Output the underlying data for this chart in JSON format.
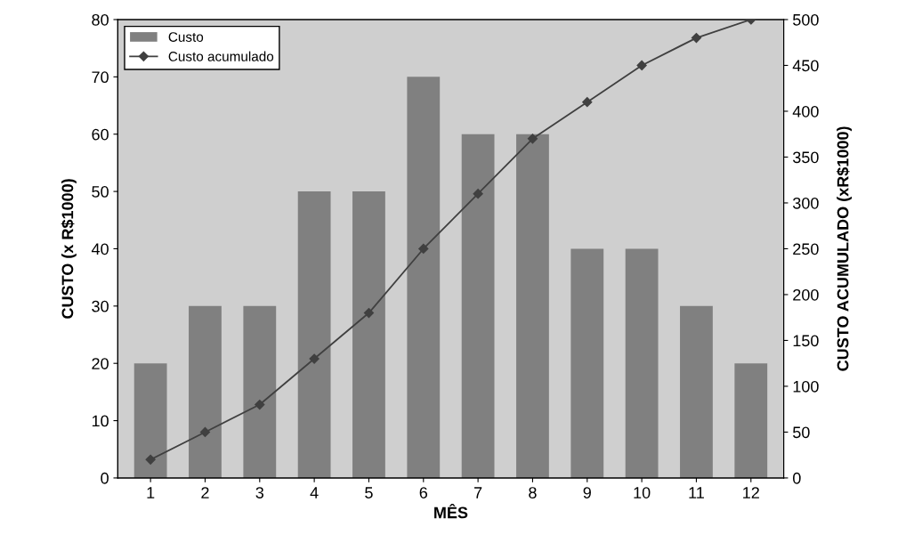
{
  "chart_data": {
    "type": "bar",
    "xlabel": "MÊS",
    "ylabel": "CUSTO (x R$1000)",
    "y2label": "CUSTO ACUMULADO (xR$1000)",
    "categories": [
      "1",
      "2",
      "3",
      "4",
      "5",
      "6",
      "7",
      "8",
      "9",
      "10",
      "11",
      "12"
    ],
    "series": [
      {
        "name": "Custo",
        "color": "#808080",
        "values": [
          20,
          30,
          30,
          50,
          50,
          70,
          60,
          60,
          40,
          40,
          30,
          20
        ]
      },
      {
        "name": "Custo acumulado",
        "type": "line",
        "axis": "y2",
        "color": "#404040",
        "marker": "diamond",
        "values": [
          20,
          50,
          80,
          130,
          180,
          250,
          310,
          370,
          410,
          450,
          480,
          500
        ]
      }
    ],
    "ylim": [
      0,
      80
    ],
    "yticks": [
      0,
      10,
      20,
      30,
      40,
      50,
      60,
      70,
      80
    ],
    "y2lim": [
      0,
      500
    ],
    "y2ticks": [
      0,
      50,
      100,
      150,
      200,
      250,
      300,
      350,
      400,
      450,
      500
    ],
    "grid": false,
    "legend": "top left"
  }
}
